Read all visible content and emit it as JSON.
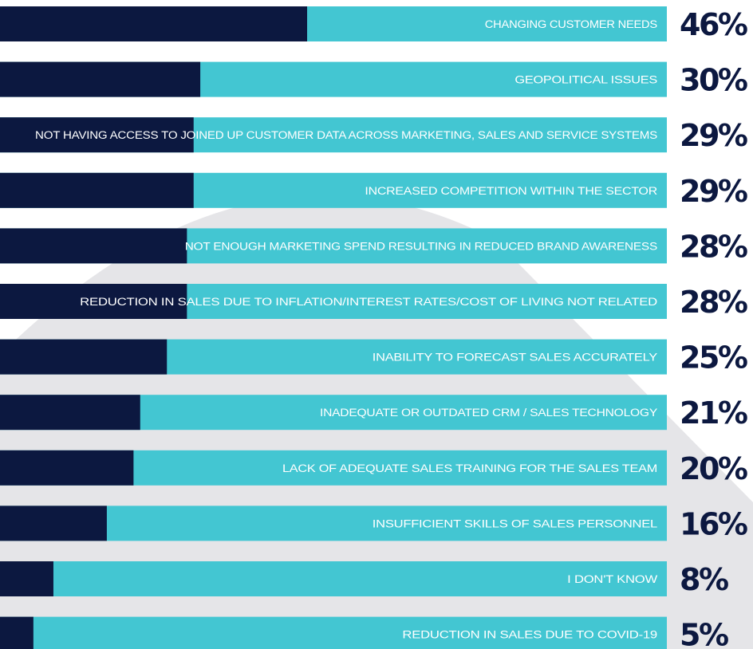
{
  "colors": {
    "track": "#43c6d2",
    "fill": "#0c1840",
    "label_text": "#ffffff",
    "percent_text": "#0c1840",
    "background_shape": "#e5e5e8",
    "background": "#ffffff"
  },
  "chart_data": {
    "type": "bar",
    "orientation": "horizontal",
    "unit": "%",
    "xlim": [
      0,
      100
    ],
    "categories": [
      "CHANGING CUSTOMER NEEDS",
      "GEOPOLITICAL ISSUES",
      "NOT HAVING ACCESS TO JOINED UP CUSTOMER DATA ACROSS MARKETING, SALES AND SERVICE SYSTEMS",
      "INCREASED COMPETITION WITHIN THE SECTOR",
      "NOT ENOUGH MARKETING SPEND RESULTING IN REDUCED BRAND AWARENESS",
      "REDUCTION IN SALES DUE TO INFLATION/INTEREST RATES/COST OF LIVING NOT RELATED",
      "INABILITY TO FORECAST SALES ACCURATELY",
      "INADEQUATE OR OUTDATED CRM / SALES TECHNOLOGY",
      "LACK OF ADEQUATE SALES TRAINING FOR THE SALES TEAM",
      "INSUFFICIENT SKILLS OF SALES PERSONNEL",
      "I DON'T KNOW",
      "REDUCTION IN SALES DUE TO COVID-19"
    ],
    "values": [
      46,
      30,
      29,
      29,
      28,
      28,
      25,
      21,
      20,
      16,
      8,
      5
    ],
    "value_labels": [
      "46%",
      "30%",
      "29%",
      "29%",
      "28%",
      "28%",
      "25%",
      "21%",
      "20%",
      "16%",
      "8%",
      "5%"
    ]
  }
}
